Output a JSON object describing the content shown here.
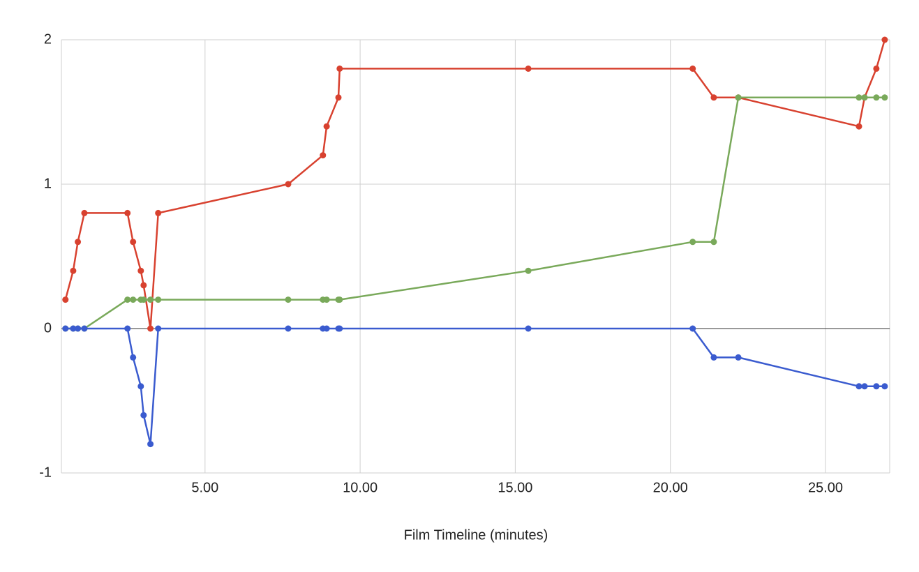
{
  "chart_data": {
    "type": "line",
    "x_label": "Film Timeline (minutes)",
    "x": [
      0.5,
      0.75,
      0.9,
      1.11,
      2.5,
      2.68,
      2.93,
      3.02,
      3.24,
      3.49,
      7.68,
      8.8,
      8.92,
      9.3,
      9.34,
      15.42,
      20.72,
      21.4,
      22.19,
      26.08,
      26.26,
      26.64,
      26.91
    ],
    "series": [
      {
        "color": "#d8412f",
        "values": [
          0.2,
          0.4,
          0.6,
          0.8,
          0.8,
          0.6,
          0.4,
          0.3,
          0,
          0.8,
          1.0,
          1.2,
          1.4,
          1.6,
          1.8,
          1.8,
          1.8,
          1.6,
          1.6,
          1.4,
          1.6,
          1.8,
          2.0
        ]
      },
      {
        "color": "#79a95a",
        "values": [
          0,
          0,
          0,
          0,
          0.2,
          0.2,
          0.2,
          0.2,
          0.2,
          0.2,
          0.2,
          0.2,
          0.2,
          0.2,
          0.2,
          0.4,
          0.6,
          0.6,
          1.6,
          1.6,
          1.6,
          1.6,
          1.6
        ]
      },
      {
        "color": "#3a5bcf",
        "values": [
          0,
          0,
          0,
          0,
          0,
          -0.2,
          -0.4,
          -0.6,
          -0.8,
          0,
          0,
          0,
          0,
          0,
          0,
          0,
          0,
          -0.2,
          -0.2,
          -0.4,
          -0.4,
          -0.4,
          -0.4
        ]
      }
    ],
    "xlim": [
      0.37,
      27.07
    ],
    "xticks": [
      {
        "value": 5,
        "label": "5.00"
      },
      {
        "value": 10,
        "label": "10.00"
      },
      {
        "value": 15,
        "label": "15.00"
      },
      {
        "value": 20,
        "label": "20.00"
      },
      {
        "value": 25,
        "label": "25.00"
      }
    ],
    "ylim": [
      -1,
      2
    ],
    "yticks": [
      -1,
      0,
      1,
      2
    ],
    "grid": true
  }
}
